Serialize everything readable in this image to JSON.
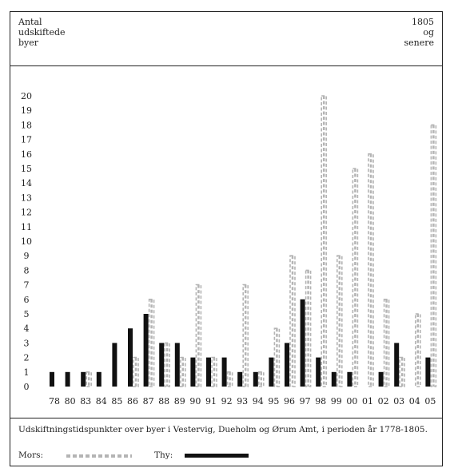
{
  "header": {
    "ylabel": "Antal\nudskiftede\nbyer",
    "year_note": "1805\nog\nsenere"
  },
  "chart_data": {
    "type": "bar",
    "categories": [
      "78",
      "80",
      "83",
      "84",
      "85",
      "86",
      "87",
      "88",
      "89",
      "90",
      "91",
      "92",
      "93",
      "94",
      "95",
      "96",
      "97",
      "98",
      "99",
      "00",
      "01",
      "02",
      "03",
      "04",
      "05"
    ],
    "series": [
      {
        "name": "Mors",
        "color": "#b4b4b4",
        "style": "dashed",
        "values": [
          0,
          0,
          1,
          0,
          0,
          2,
          6,
          3,
          2,
          7,
          2,
          1,
          7,
          1,
          4,
          9,
          8,
          20,
          9,
          15,
          16,
          6,
          2,
          5,
          18
        ]
      },
      {
        "name": "Thy",
        "color": "#111111",
        "style": "solid",
        "values": [
          1,
          1,
          1,
          1,
          3,
          4,
          5,
          3,
          3,
          2,
          2,
          2,
          1,
          1,
          2,
          3,
          6,
          2,
          1,
          1,
          0,
          1,
          3,
          0,
          2
        ]
      }
    ],
    "ylim": [
      0,
      20
    ],
    "yticks": [
      "0",
      "1",
      "2",
      "3",
      "4",
      "5",
      "6",
      "7",
      "8",
      "9",
      "10",
      "11",
      "12",
      "13",
      "14",
      "15",
      "16",
      "17",
      "18",
      "19",
      "20"
    ],
    "grid": false
  },
  "footer": {
    "caption": "Udskiftningstidspunkter over byer i Vestervig, Dueholm og Ørum Amt, i perioden år 1778-1805.",
    "legend": {
      "mors": "Mors:",
      "thy": "Thy:"
    }
  }
}
